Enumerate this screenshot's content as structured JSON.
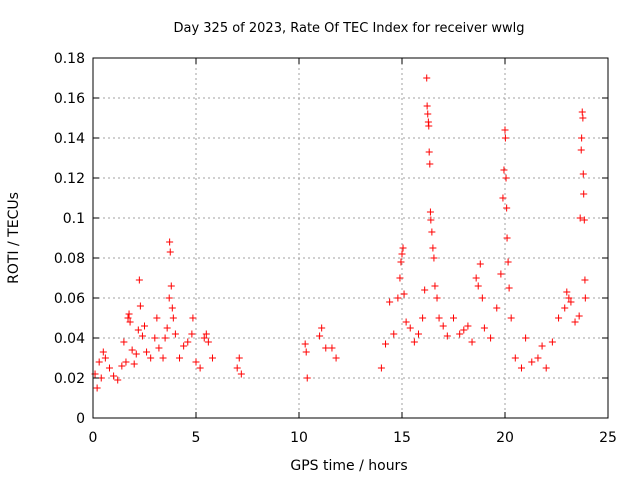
{
  "chart_data": {
    "type": "scatter",
    "title": "Day 325 of 2023, Rate Of TEC Index for receiver wwlg",
    "xlabel": "GPS time / hours",
    "ylabel": "ROTI / TECUs",
    "xlim": [
      0,
      25
    ],
    "ylim": [
      0,
      0.18
    ],
    "xticks": [
      "0",
      "5",
      "10",
      "15",
      "20",
      "25"
    ],
    "yticks": [
      "0",
      "0.02",
      "0.04",
      "0.06",
      "0.08",
      "0.1",
      "0.12",
      "0.14",
      "0.16",
      "0.18"
    ],
    "grid": true,
    "marker": "plus",
    "series_color": "#ff0000",
    "series": [
      {
        "points": [
          [
            0.1,
            0.022
          ],
          [
            0.2,
            0.015
          ],
          [
            0.3,
            0.028
          ],
          [
            0.4,
            0.02
          ],
          [
            0.5,
            0.033
          ],
          [
            0.6,
            0.03
          ],
          [
            0.8,
            0.025
          ],
          [
            1.0,
            0.021
          ],
          [
            1.2,
            0.019
          ],
          [
            1.4,
            0.026
          ],
          [
            1.5,
            0.038
          ],
          [
            1.6,
            0.028
          ],
          [
            1.7,
            0.05
          ],
          [
            1.75,
            0.052
          ],
          [
            1.8,
            0.048
          ],
          [
            1.9,
            0.034
          ],
          [
            2.0,
            0.027
          ],
          [
            2.1,
            0.032
          ],
          [
            2.2,
            0.044
          ],
          [
            2.25,
            0.069
          ],
          [
            2.3,
            0.056
          ],
          [
            2.4,
            0.041
          ],
          [
            2.5,
            0.046
          ],
          [
            2.6,
            0.033
          ],
          [
            2.8,
            0.03
          ],
          [
            3.0,
            0.04
          ],
          [
            3.1,
            0.05
          ],
          [
            3.2,
            0.035
          ],
          [
            3.4,
            0.03
          ],
          [
            3.5,
            0.04
          ],
          [
            3.6,
            0.045
          ],
          [
            3.7,
            0.06
          ],
          [
            3.72,
            0.088
          ],
          [
            3.75,
            0.083
          ],
          [
            3.8,
            0.066
          ],
          [
            3.85,
            0.055
          ],
          [
            3.9,
            0.05
          ],
          [
            4.0,
            0.042
          ],
          [
            4.2,
            0.03
          ],
          [
            4.4,
            0.036
          ],
          [
            4.6,
            0.038
          ],
          [
            4.8,
            0.042
          ],
          [
            4.85,
            0.05
          ],
          [
            5.0,
            0.028
          ],
          [
            5.2,
            0.025
          ],
          [
            5.4,
            0.04
          ],
          [
            5.5,
            0.042
          ],
          [
            5.6,
            0.038
          ],
          [
            5.8,
            0.03
          ],
          [
            7.0,
            0.025
          ],
          [
            7.1,
            0.03
          ],
          [
            7.2,
            0.022
          ],
          [
            10.3,
            0.037
          ],
          [
            10.35,
            0.033
          ],
          [
            10.4,
            0.02
          ],
          [
            11.0,
            0.041
          ],
          [
            11.1,
            0.045
          ],
          [
            11.3,
            0.035
          ],
          [
            11.6,
            0.035
          ],
          [
            11.8,
            0.03
          ],
          [
            14.0,
            0.025
          ],
          [
            14.2,
            0.037
          ],
          [
            14.4,
            0.058
          ],
          [
            14.6,
            0.042
          ],
          [
            14.8,
            0.06
          ],
          [
            14.9,
            0.07
          ],
          [
            14.95,
            0.078
          ],
          [
            15.0,
            0.082
          ],
          [
            15.05,
            0.085
          ],
          [
            15.1,
            0.062
          ],
          [
            15.2,
            0.048
          ],
          [
            15.4,
            0.045
          ],
          [
            15.6,
            0.038
          ],
          [
            15.8,
            0.042
          ],
          [
            16.0,
            0.05
          ],
          [
            16.1,
            0.064
          ],
          [
            16.2,
            0.17
          ],
          [
            16.22,
            0.156
          ],
          [
            16.25,
            0.152
          ],
          [
            16.28,
            0.148
          ],
          [
            16.3,
            0.146
          ],
          [
            16.32,
            0.133
          ],
          [
            16.35,
            0.127
          ],
          [
            16.38,
            0.103
          ],
          [
            16.4,
            0.099
          ],
          [
            16.45,
            0.093
          ],
          [
            16.5,
            0.085
          ],
          [
            16.55,
            0.08
          ],
          [
            16.6,
            0.066
          ],
          [
            16.7,
            0.06
          ],
          [
            16.8,
            0.05
          ],
          [
            17.0,
            0.046
          ],
          [
            17.2,
            0.041
          ],
          [
            17.5,
            0.05
          ],
          [
            17.8,
            0.042
          ],
          [
            18.0,
            0.044
          ],
          [
            18.2,
            0.046
          ],
          [
            18.4,
            0.038
          ],
          [
            18.6,
            0.07
          ],
          [
            18.7,
            0.066
          ],
          [
            18.8,
            0.077
          ],
          [
            18.9,
            0.06
          ],
          [
            19.0,
            0.045
          ],
          [
            19.3,
            0.04
          ],
          [
            19.6,
            0.055
          ],
          [
            19.8,
            0.072
          ],
          [
            19.9,
            0.11
          ],
          [
            19.95,
            0.124
          ],
          [
            20.0,
            0.144
          ],
          [
            20.02,
            0.14
          ],
          [
            20.05,
            0.12
          ],
          [
            20.08,
            0.105
          ],
          [
            20.1,
            0.09
          ],
          [
            20.15,
            0.078
          ],
          [
            20.2,
            0.065
          ],
          [
            20.3,
            0.05
          ],
          [
            20.5,
            0.03
          ],
          [
            20.8,
            0.025
          ],
          [
            21.0,
            0.04
          ],
          [
            21.3,
            0.028
          ],
          [
            21.6,
            0.03
          ],
          [
            21.8,
            0.036
          ],
          [
            22.0,
            0.025
          ],
          [
            22.3,
            0.038
          ],
          [
            22.6,
            0.05
          ],
          [
            22.9,
            0.055
          ],
          [
            23.0,
            0.063
          ],
          [
            23.1,
            0.06
          ],
          [
            23.2,
            0.058
          ],
          [
            23.4,
            0.048
          ],
          [
            23.6,
            0.051
          ],
          [
            23.65,
            0.1
          ],
          [
            23.7,
            0.134
          ],
          [
            23.72,
            0.14
          ],
          [
            23.75,
            0.153
          ],
          [
            23.78,
            0.15
          ],
          [
            23.8,
            0.122
          ],
          [
            23.82,
            0.112
          ],
          [
            23.85,
            0.099
          ],
          [
            23.88,
            0.069
          ],
          [
            23.9,
            0.06
          ]
        ]
      }
    ]
  }
}
